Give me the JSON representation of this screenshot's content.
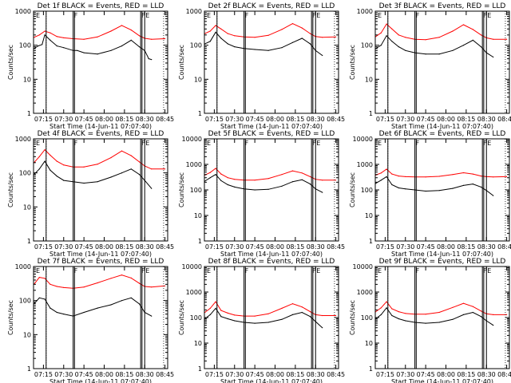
{
  "panel_defaults": {
    "xlabel": "Start Time (14-Jun-11 07:07:40)",
    "ylabel": "Counts/sec",
    "x_ticks": [
      "07:15",
      "07:30",
      "07:45",
      "08:00",
      "08:15",
      "08:30",
      "08:45"
    ],
    "xlim": [
      "07:07:40",
      "08:47:00"
    ],
    "yscale": "log",
    "series_colors": {
      "events": "#000000",
      "lld": "#ff0000"
    },
    "flag_marks": [
      "E",
      "F",
      "F",
      "E"
    ],
    "vertical_markers": [
      "07:17",
      "07:37",
      "07:38",
      "08:27",
      "08:28",
      "08:30"
    ],
    "dotted_markers": [
      "07:17",
      "08:44"
    ]
  },
  "chart_data": [
    {
      "type": "line",
      "title": "Det 1f BLACK = Events, RED = LLD",
      "ylim": [
        1,
        1000
      ],
      "y_ticks": [
        "1",
        "10",
        "100",
        "1000"
      ],
      "series": [
        {
          "name": "Events",
          "color": "#000000",
          "x": [
            "07:08",
            "07:11",
            "07:14",
            "07:16",
            "07:20",
            "07:25",
            "07:30",
            "07:37",
            "07:40",
            "07:45",
            "07:55",
            "08:05",
            "08:13",
            "08:20",
            "08:26",
            "08:30",
            "08:33",
            "08:35"
          ],
          "values": [
            80,
            95,
            105,
            200,
            140,
            95,
            85,
            70,
            70,
            60,
            55,
            70,
            95,
            140,
            90,
            70,
            40,
            38
          ]
        },
        {
          "name": "LLD",
          "color": "#ff0000",
          "x": [
            "07:08",
            "07:12",
            "07:16",
            "07:20",
            "07:25",
            "07:30",
            "07:37",
            "07:45",
            "07:55",
            "08:05",
            "08:13",
            "08:20",
            "08:26",
            "08:30",
            "08:35",
            "08:45"
          ],
          "values": [
            170,
            200,
            260,
            230,
            180,
            165,
            155,
            150,
            175,
            260,
            380,
            280,
            190,
            160,
            150,
            155
          ]
        }
      ]
    },
    {
      "type": "line",
      "title": "Det 2f BLACK = Events, RED = LLD",
      "ylim": [
        1,
        1000
      ],
      "y_ticks": [
        "1",
        "10",
        "100",
        "1000"
      ],
      "series": [
        {
          "name": "Events",
          "color": "#000000",
          "x": [
            "07:08",
            "07:12",
            "07:16",
            "07:20",
            "07:25",
            "07:30",
            "07:37",
            "07:45",
            "07:55",
            "08:05",
            "08:13",
            "08:20",
            "08:26",
            "08:30",
            "08:35"
          ],
          "values": [
            110,
            130,
            240,
            160,
            110,
            90,
            80,
            75,
            70,
            85,
            120,
            160,
            110,
            70,
            50
          ]
        },
        {
          "name": "LLD",
          "color": "#ff0000",
          "x": [
            "07:08",
            "07:12",
            "07:16",
            "07:20",
            "07:25",
            "07:30",
            "07:37",
            "07:45",
            "07:55",
            "08:05",
            "08:13",
            "08:20",
            "08:26",
            "08:30",
            "08:35",
            "08:45"
          ],
          "values": [
            220,
            260,
            380,
            300,
            220,
            190,
            175,
            170,
            195,
            290,
            430,
            320,
            220,
            180,
            170,
            175
          ]
        }
      ]
    },
    {
      "type": "line",
      "title": "Det 3f BLACK = Events, RED = LLD",
      "ylim": [
        1,
        1000
      ],
      "y_ticks": [
        "1",
        "10",
        "100",
        "1000"
      ],
      "series": [
        {
          "name": "Events",
          "color": "#000000",
          "x": [
            "07:08",
            "07:12",
            "07:16",
            "07:20",
            "07:25",
            "07:30",
            "07:37",
            "07:45",
            "07:55",
            "08:05",
            "08:13",
            "08:20",
            "08:26",
            "08:30",
            "08:35"
          ],
          "values": [
            80,
            100,
            190,
            130,
            90,
            70,
            60,
            55,
            55,
            70,
            100,
            140,
            90,
            60,
            45
          ]
        },
        {
          "name": "LLD",
          "color": "#ff0000",
          "x": [
            "07:08",
            "07:12",
            "07:16",
            "07:20",
            "07:25",
            "07:30",
            "07:37",
            "07:45",
            "07:55",
            "08:05",
            "08:13",
            "08:20",
            "08:26",
            "08:30",
            "08:35",
            "08:45"
          ],
          "values": [
            180,
            230,
            420,
            300,
            200,
            170,
            150,
            145,
            170,
            260,
            400,
            290,
            200,
            165,
            150,
            150
          ]
        }
      ]
    },
    {
      "type": "line",
      "title": "Det 4f BLACK = Events, RED = LLD",
      "ylim": [
        1,
        1000
      ],
      "y_ticks": [
        "1",
        "10",
        "100",
        "1000"
      ],
      "series": [
        {
          "name": "Events",
          "color": "#000000",
          "x": [
            "07:08",
            "07:12",
            "07:16",
            "07:20",
            "07:25",
            "07:30",
            "07:37",
            "07:45",
            "07:55",
            "08:05",
            "08:13",
            "08:20",
            "08:26",
            "08:30",
            "08:35"
          ],
          "values": [
            90,
            130,
            220,
            120,
            80,
            60,
            55,
            50,
            55,
            75,
            100,
            130,
            90,
            60,
            35
          ]
        },
        {
          "name": "LLD",
          "color": "#ff0000",
          "x": [
            "07:08",
            "07:12",
            "07:16",
            "07:20",
            "07:25",
            "07:30",
            "07:37",
            "07:45",
            "07:55",
            "08:05",
            "08:13",
            "08:20",
            "08:26",
            "08:30",
            "08:35",
            "08:45"
          ],
          "values": [
            200,
            300,
            480,
            330,
            220,
            170,
            150,
            150,
            180,
            280,
            440,
            320,
            210,
            160,
            130,
            130
          ]
        }
      ]
    },
    {
      "type": "line",
      "title": "Det 5f BLACK = Events, RED = LLD",
      "ylim": [
        1,
        10000
      ],
      "y_ticks": [
        "1",
        "10",
        "100",
        "1000",
        "10000"
      ],
      "series": [
        {
          "name": "Events",
          "color": "#000000",
          "x": [
            "07:08",
            "07:12",
            "07:16",
            "07:20",
            "07:25",
            "07:30",
            "07:37",
            "07:45",
            "07:55",
            "08:05",
            "08:13",
            "08:20",
            "08:26",
            "08:30",
            "08:35"
          ],
          "values": [
            220,
            300,
            400,
            230,
            160,
            130,
            110,
            100,
            105,
            140,
            210,
            250,
            170,
            110,
            80
          ]
        },
        {
          "name": "LLD",
          "color": "#ff0000",
          "x": [
            "07:08",
            "07:12",
            "07:16",
            "07:20",
            "07:25",
            "07:30",
            "07:37",
            "07:45",
            "07:55",
            "08:05",
            "08:13",
            "08:20",
            "08:26",
            "08:30",
            "08:35",
            "08:45"
          ],
          "values": [
            380,
            480,
            700,
            420,
            300,
            260,
            240,
            240,
            280,
            400,
            560,
            460,
            330,
            260,
            240,
            240
          ]
        }
      ]
    },
    {
      "type": "line",
      "title": "Det 6f BLACK = Events, RED = LLD",
      "ylim": [
        1,
        10000
      ],
      "y_ticks": [
        "1",
        "10",
        "100",
        "1000",
        "10000"
      ],
      "series": [
        {
          "name": "Events",
          "color": "#000000",
          "x": [
            "07:08",
            "07:12",
            "07:16",
            "07:20",
            "07:25",
            "07:30",
            "07:37",
            "07:45",
            "07:55",
            "08:05",
            "08:13",
            "08:20",
            "08:26",
            "08:30",
            "08:35"
          ],
          "values": [
            180,
            240,
            330,
            160,
            120,
            110,
            100,
            90,
            95,
            115,
            150,
            170,
            130,
            95,
            60
          ]
        },
        {
          "name": "LLD",
          "color": "#ff0000",
          "x": [
            "07:08",
            "07:12",
            "07:16",
            "07:20",
            "07:25",
            "07:30",
            "07:37",
            "07:45",
            "07:55",
            "08:05",
            "08:13",
            "08:20",
            "08:26",
            "08:30",
            "08:35",
            "08:45"
          ],
          "values": [
            380,
            460,
            650,
            420,
            350,
            330,
            320,
            320,
            340,
            400,
            470,
            420,
            350,
            330,
            320,
            330
          ]
        }
      ]
    },
    {
      "type": "line",
      "title": "Det 7f BLACK = Events, RED = LLD",
      "ylim": [
        1,
        1000
      ],
      "y_ticks": [
        "1",
        "10",
        "100",
        "1000"
      ],
      "series": [
        {
          "name": "Events",
          "color": "#000000",
          "x": [
            "07:08",
            "07:12",
            "07:16",
            "07:20",
            "07:25",
            "07:30",
            "07:37",
            "07:45",
            "07:55",
            "08:05",
            "08:13",
            "08:20",
            "08:26",
            "08:30",
            "08:35"
          ],
          "values": [
            80,
            120,
            110,
            60,
            45,
            40,
            35,
            45,
            60,
            75,
            100,
            120,
            80,
            45,
            35
          ]
        },
        {
          "name": "LLD",
          "color": "#ff0000",
          "x": [
            "07:08",
            "07:12",
            "07:16",
            "07:20",
            "07:25",
            "07:30",
            "07:37",
            "07:45",
            "07:55",
            "08:05",
            "08:13",
            "08:20",
            "08:26",
            "08:30",
            "08:35",
            "08:45"
          ],
          "values": [
            300,
            480,
            450,
            300,
            260,
            240,
            230,
            250,
            330,
            450,
            560,
            460,
            320,
            260,
            250,
            270
          ]
        }
      ]
    },
    {
      "type": "line",
      "title": "Det 8f BLACK = Events, RED = LLD",
      "ylim": [
        1,
        10000
      ],
      "y_ticks": [
        "1",
        "10",
        "100",
        "1000",
        "10000"
      ],
      "series": [
        {
          "name": "Events",
          "color": "#000000",
          "x": [
            "07:08",
            "07:12",
            "07:16",
            "07:20",
            "07:25",
            "07:30",
            "07:37",
            "07:45",
            "07:55",
            "08:05",
            "08:13",
            "08:20",
            "08:26",
            "08:30",
            "08:35"
          ],
          "values": [
            90,
            130,
            230,
            110,
            90,
            75,
            65,
            60,
            65,
            85,
            130,
            160,
            110,
            70,
            40
          ]
        },
        {
          "name": "LLD",
          "color": "#ff0000",
          "x": [
            "07:08",
            "07:12",
            "07:16",
            "07:20",
            "07:25",
            "07:30",
            "07:37",
            "07:45",
            "07:55",
            "08:05",
            "08:13",
            "08:20",
            "08:26",
            "08:30",
            "08:35",
            "08:45"
          ],
          "values": [
            160,
            230,
            420,
            190,
            150,
            125,
            115,
            115,
            140,
            230,
            350,
            260,
            170,
            130,
            120,
            120
          ]
        }
      ]
    },
    {
      "type": "line",
      "title": "Det 9f BLACK = Events, RED = LLD",
      "ylim": [
        1,
        10000
      ],
      "y_ticks": [
        "1",
        "10",
        "100",
        "1000",
        "10000"
      ],
      "series": [
        {
          "name": "Events",
          "color": "#000000",
          "x": [
            "07:08",
            "07:12",
            "07:16",
            "07:20",
            "07:25",
            "07:30",
            "07:37",
            "07:45",
            "07:55",
            "08:05",
            "08:13",
            "08:20",
            "08:26",
            "08:30",
            "08:35"
          ],
          "values": [
            90,
            130,
            240,
            120,
            90,
            75,
            65,
            60,
            65,
            85,
            130,
            160,
            110,
            75,
            50
          ]
        },
        {
          "name": "LLD",
          "color": "#ff0000",
          "x": [
            "07:08",
            "07:12",
            "07:16",
            "07:20",
            "07:25",
            "07:30",
            "07:37",
            "07:45",
            "07:55",
            "08:05",
            "08:13",
            "08:20",
            "08:26",
            "08:30",
            "08:35",
            "08:45"
          ],
          "values": [
            170,
            240,
            420,
            220,
            170,
            145,
            135,
            135,
            160,
            250,
            360,
            270,
            180,
            140,
            130,
            130
          ]
        }
      ]
    }
  ]
}
